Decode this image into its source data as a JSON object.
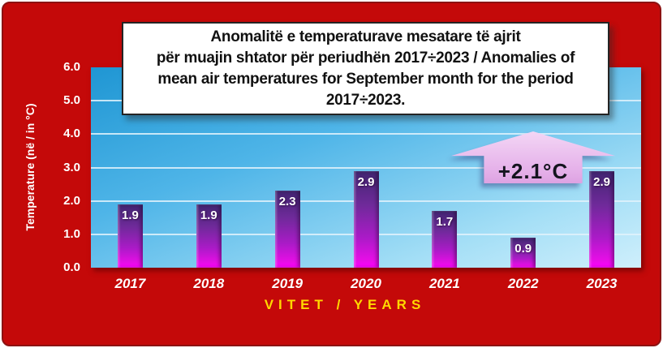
{
  "card": {
    "background_color": "#c40909",
    "border_color": "#8c1212"
  },
  "title_box": {
    "lines": [
      "Anomalitë e temperaturave mesatare të ajrit",
      "për muajin shtator për periudhën 2017÷2023 / Anomalies of",
      "mean air temperatures for September month for the period",
      "2017÷2023."
    ],
    "background_color": "#ffffff",
    "border_color": "#242424",
    "text_color": "#111111"
  },
  "chart_data": {
    "type": "bar",
    "title": "Anomalitë e temperaturave mesatare të ajrit për muajin shtator për periudhën 2017÷2023 / Anomalies of mean air temperatures for September month for the period 2017÷2023.",
    "categories": [
      "2017",
      "2018",
      "2019",
      "2020",
      "2021",
      "2022",
      "2023"
    ],
    "values": [
      1.9,
      1.9,
      2.3,
      2.9,
      1.7,
      0.9,
      2.9
    ],
    "value_labels": [
      "1.9",
      "1.9",
      "2.3",
      "2.9",
      "1.7",
      "0.9",
      "2.9"
    ],
    "xlabel": "VITET / YEARS",
    "ylabel": "Temperature (në / in °C)",
    "ylim": [
      0,
      6
    ],
    "ytick_values": [
      0,
      1,
      2,
      3,
      4,
      5,
      6
    ],
    "ytick_labels": [
      "0.0",
      "1.0",
      "2.0",
      "3.0",
      "4.0",
      "5.0",
      "6.0"
    ],
    "grid": "horizontal",
    "legend": "none",
    "annotation": {
      "label": "+2.1°C",
      "shape": "up-arrow",
      "fill_color": "#e9bdec",
      "text_color": "#14141e"
    },
    "colors": {
      "plot_background_gradient": [
        "#1f96d3",
        "#4fb5e8",
        "#a5dff6",
        "#cfeffc"
      ],
      "bar_gradient": [
        "#412470",
        "#6f2a9a",
        "#a91bc6",
        "#ff00ff"
      ],
      "gridline_color": "#e0f2fc",
      "value_label_color": "#ffffff",
      "xtick_color": "#ffffff",
      "ytick_color": "#ffffff",
      "xlabel_color": "#ffd800",
      "ylabel_color": "#ffffff"
    }
  }
}
